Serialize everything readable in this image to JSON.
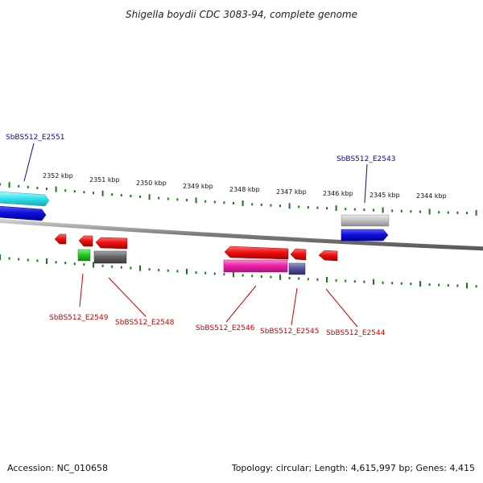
{
  "title": "Shigella boydii CDC 3083-94, complete genome",
  "footer": {
    "accession": "Accession: NC_010658",
    "summary": "Topology: circular; Length: 4,615,997 bp; Genes: 4,415"
  },
  "scale_labels": [
    "2352 kbp",
    "2351 kbp",
    "2350 kbp",
    "2349 kbp",
    "2348 kbp",
    "2347 kbp",
    "2346 kbp",
    "2345 kbp",
    "2344 kbp"
  ],
  "colors": {
    "forward_label": "#0a0a9c",
    "reverse_label": "#cc0000",
    "backbone": "#808080",
    "ticks": "#1a7a1a",
    "cyan": "#33e3ee",
    "blue": "#1111dd",
    "silver": "#c0c0c0",
    "red": "#ee1111",
    "green": "#22cc22",
    "gray": "#666666",
    "magenta": "#ee22aa",
    "slate": "#555599"
  },
  "labels": {
    "e2551": "SbBS512_E2551",
    "e2543": "SbBS512_E2543",
    "e2549": "SbBS512_E2549",
    "e2548": "SbBS512_E2548",
    "e2546": "SbBS512_E2546",
    "e2545": "SbBS512_E2545",
    "e2544": "SbBS512_E2544"
  }
}
